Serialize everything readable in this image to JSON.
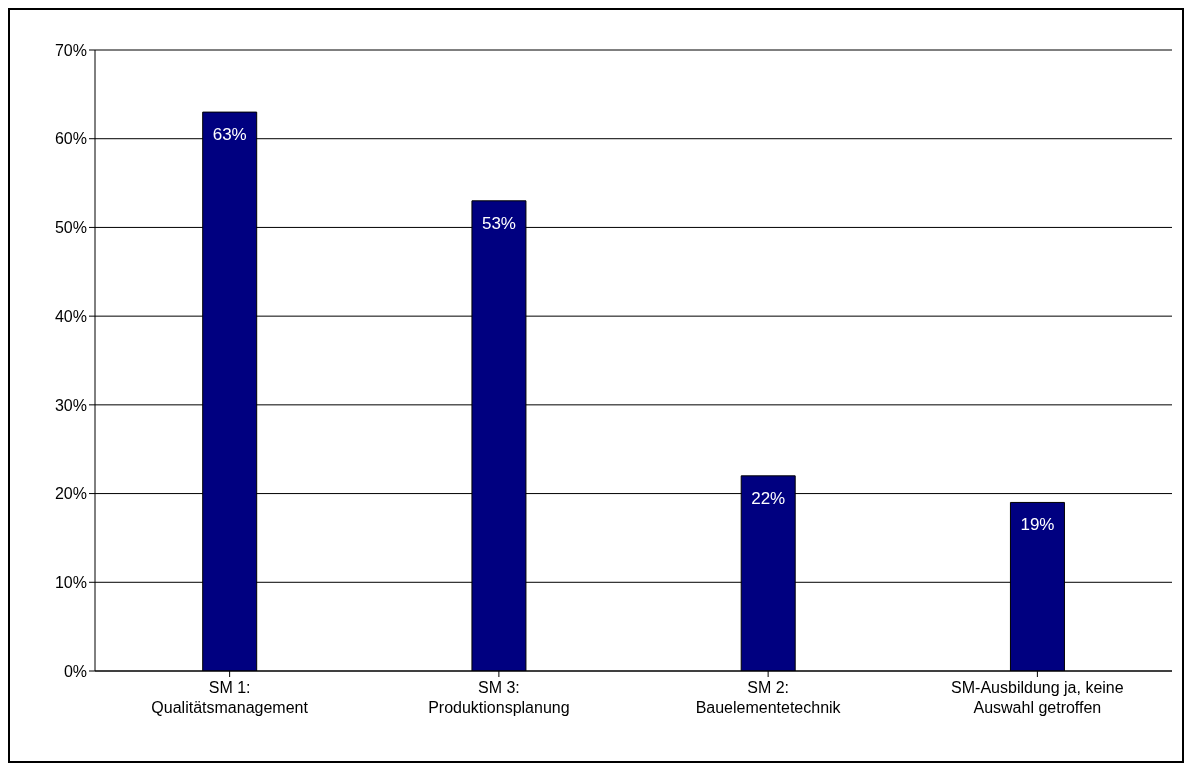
{
  "chart_data": {
    "type": "bar",
    "categories": [
      "SM 1:\nQualitätsmanagement",
      "SM 3:\nProduktionsplanung",
      "SM 2:\nBauelementetechnik",
      "SM-Ausbildung ja, keine\nAuswahl getroffen"
    ],
    "values": [
      63,
      53,
      22,
      19
    ],
    "value_labels": [
      "63%",
      "53%",
      "22%",
      "19%"
    ],
    "color": "#000080",
    "ylim": [
      0,
      70
    ],
    "yticks": [
      {
        "value": 0,
        "label": "0%"
      },
      {
        "value": 10,
        "label": "10%"
      },
      {
        "value": 20,
        "label": "20%"
      },
      {
        "value": 30,
        "label": "30%"
      },
      {
        "value": 40,
        "label": "40%"
      },
      {
        "value": 50,
        "label": "50%"
      },
      {
        "value": 60,
        "label": "60%"
      },
      {
        "value": 70,
        "label": "70%"
      }
    ],
    "grid": "y",
    "legend": false
  }
}
